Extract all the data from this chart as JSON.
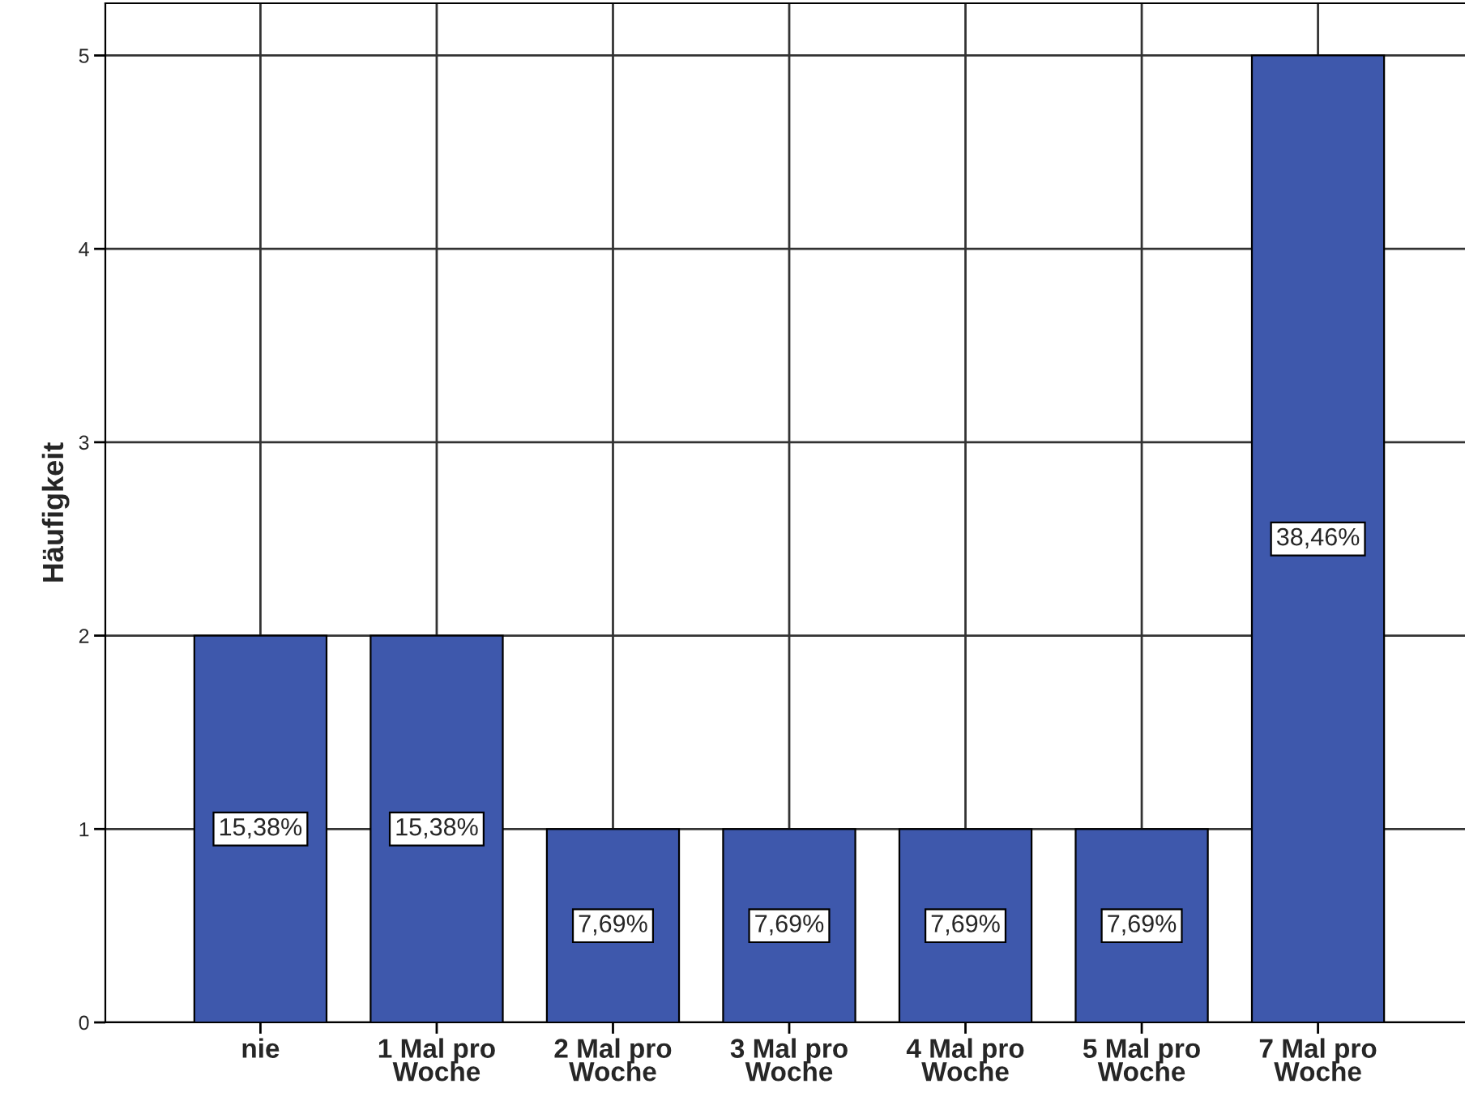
{
  "chart_data": {
    "type": "bar",
    "ylabel": "Häufigkeit",
    "categories": [
      "nie",
      "1 Mal pro\nWoche",
      "2 Mal pro\nWoche",
      "3 Mal pro\nWoche",
      "4 Mal pro\nWoche",
      "5 Mal pro\nWoche",
      "7 Mal pro\nWoche"
    ],
    "values": [
      2,
      2,
      1,
      1,
      1,
      1,
      5
    ],
    "annotations": [
      "15,38%",
      "15,38%",
      "7,69%",
      "7,69%",
      "7,69%",
      "7,69%",
      "38,46%"
    ],
    "color": "#3e58ac",
    "ylim": [
      0,
      5.27
    ],
    "yticks": [
      0,
      1,
      2,
      3,
      4,
      5
    ],
    "grid": true,
    "legend": false
  }
}
